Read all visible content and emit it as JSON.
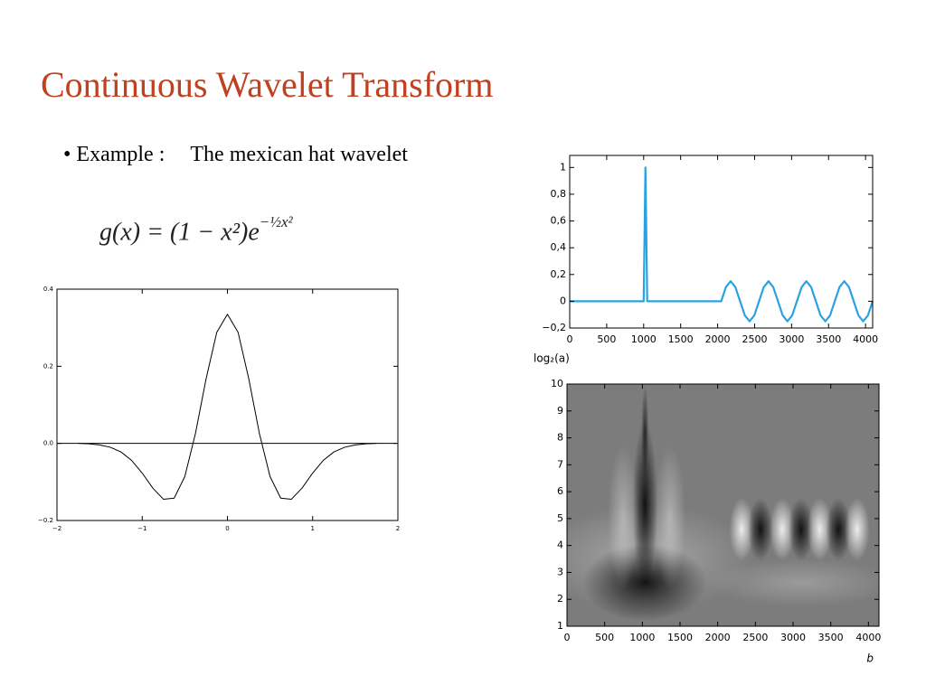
{
  "title": "Continuous Wavelet Transform",
  "bullet": {
    "label": "• Example :",
    "text": "The mexican hat wavelet"
  },
  "formula": {
    "base": "g(x) = (1 − x²)e",
    "exponent": "−½x²"
  },
  "chart_data": [
    {
      "type": "line",
      "x": [
        -1.75,
        -1.625,
        -1.5,
        -1.375,
        -1.25,
        -1.125,
        -1,
        -0.875,
        -0.75,
        -0.625,
        -0.5,
        -0.375,
        -0.25,
        -0.125,
        0,
        0.125,
        0.25,
        0.375,
        0.5,
        0.625,
        0.75,
        0.875,
        1,
        1.125,
        1.25,
        1.375,
        1.5,
        1.625,
        1.75
      ],
      "values": [
        0,
        -0.001,
        -0.004,
        -0.01,
        -0.022,
        -0.044,
        -0.077,
        -0.116,
        -0.145,
        -0.142,
        -0.086,
        0.026,
        0.168,
        0.288,
        0.335,
        0.288,
        0.168,
        0.026,
        -0.086,
        -0.142,
        -0.145,
        -0.116,
        -0.077,
        -0.044,
        -0.022,
        -0.01,
        -0.004,
        -0.001,
        0
      ],
      "color": "#000000",
      "xlim": [
        -2,
        2
      ],
      "ylim": [
        -0.2,
        0.4
      ],
      "xticks": [
        {
          "value": -2,
          "label": "−2"
        },
        {
          "value": -1,
          "label": "−1"
        },
        0,
        1,
        2
      ],
      "yticks": [
        {
          "value": -0.2,
          "label": "−0.2"
        },
        {
          "value": 0,
          "label": "0.0"
        },
        {
          "value": 0.2,
          "label": "0.2"
        },
        {
          "value": 0.4,
          "label": "0.4"
        }
      ],
      "zero_line": true
    },
    {
      "type": "line",
      "x": [
        0,
        1000,
        1024,
        1048,
        2048,
        2112,
        2176,
        2240,
        2304,
        2368,
        2432,
        2496,
        2560,
        2624,
        2688,
        2752,
        2816,
        2880,
        2944,
        3008,
        3072,
        3136,
        3200,
        3264,
        3328,
        3392,
        3456,
        3520,
        3584,
        3648,
        3712,
        3776,
        3840,
        3904,
        3968,
        4032,
        4096
      ],
      "values": [
        0,
        0,
        1,
        0,
        0,
        0.106,
        0.15,
        0.106,
        0,
        -0.106,
        -0.15,
        -0.106,
        0,
        0.106,
        0.15,
        0.106,
        0,
        -0.106,
        -0.15,
        -0.106,
        0,
        0.106,
        0.15,
        0.106,
        0,
        -0.106,
        -0.15,
        -0.106,
        0,
        0.106,
        0.15,
        0.106,
        0,
        -0.106,
        -0.15,
        -0.106,
        0
      ],
      "color": "#29a3e0",
      "xlim": [
        0,
        4096
      ],
      "ylim": [
        -0.2,
        1.09
      ],
      "xticks": [
        0,
        500,
        1000,
        1500,
        2000,
        2500,
        3000,
        3500,
        4000
      ],
      "yticks": [
        {
          "value": -0.2,
          "label": "−0,2"
        },
        0,
        {
          "value": 0.2,
          "label": "0,2"
        },
        {
          "value": 0.4,
          "label": "0,4"
        },
        {
          "value": 0.6,
          "label": "0,6"
        },
        {
          "value": 0.8,
          "label": "0,8"
        },
        1
      ],
      "ylabel": "log₂(a)"
    },
    {
      "type": "heatmap",
      "xlim": [
        0,
        4140
      ],
      "ylim": [
        1,
        10
      ],
      "xticks": [
        0,
        500,
        1000,
        1500,
        2000,
        2500,
        3000,
        3500,
        4000
      ],
      "yticks": [
        1,
        2,
        3,
        4,
        5,
        6,
        7,
        8,
        9,
        10
      ],
      "xlabel": "b"
    }
  ]
}
